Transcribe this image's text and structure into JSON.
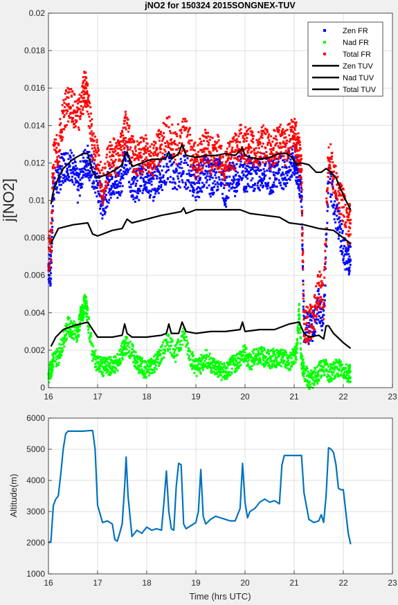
{
  "colors": {
    "zen_fr": "#0000ff",
    "nad_fr": "#00ff00",
    "total_fr": "#ff0000",
    "tuv": "#000000",
    "altitude": "#0072bd",
    "background": "#f0f0f0",
    "axes_bg": "#ffffff",
    "grid": "#dfdfdf"
  },
  "chart_data": [
    {
      "type": "scatter",
      "title": "jNO2 for 150324 2015SONGNEX-TUV",
      "ylabel": "j[NO2]",
      "xlabel": "",
      "xlim": [
        16,
        23
      ],
      "ylim": [
        0,
        0.02
      ],
      "xticks": [
        16,
        17,
        18,
        19,
        20,
        21,
        22,
        23
      ],
      "xtick_labels": [
        "16",
        "17",
        "18",
        "19",
        "20",
        "21",
        "22",
        "23"
      ],
      "yticks": [
        0,
        0.002,
        0.004,
        0.006,
        0.008,
        0.01,
        0.012,
        0.014,
        0.016,
        0.018,
        0.02
      ],
      "ytick_labels": [
        "0",
        "0.002",
        "0.004",
        "0.006",
        "0.008",
        "0.01",
        "0.012",
        "0.014",
        "0.016",
        "0.018",
        "0.02"
      ],
      "grid": true,
      "legend_position": "top-right",
      "series": [
        {
          "name": "Zen FR",
          "kind": "markers",
          "color": "#0000ff",
          "x": [
            16.0,
            16.05,
            16.1,
            16.2,
            16.3,
            16.4,
            16.5,
            16.6,
            16.7,
            16.8,
            16.9,
            17.0,
            17.1,
            17.2,
            17.3,
            17.4,
            17.5,
            17.58,
            17.7,
            17.8,
            17.9,
            18.0,
            18.1,
            18.2,
            18.3,
            18.45,
            18.6,
            18.75,
            18.9,
            19.0,
            19.1,
            19.2,
            19.3,
            19.4,
            19.5,
            19.6,
            19.7,
            19.8,
            19.9,
            20.0,
            20.1,
            20.2,
            20.3,
            20.4,
            20.5,
            20.6,
            20.7,
            20.8,
            20.9,
            21.0,
            21.05,
            21.1,
            21.15,
            21.2,
            21.3,
            21.4,
            21.5,
            21.6,
            21.7,
            21.8,
            21.9,
            22.0,
            22.1,
            22.15
          ],
          "y": [
            0.0065,
            0.0062,
            0.0108,
            0.0112,
            0.0118,
            0.012,
            0.0118,
            0.0106,
            0.0118,
            0.0122,
            0.0114,
            0.0108,
            0.0098,
            0.0106,
            0.0112,
            0.0108,
            0.0114,
            0.0124,
            0.011,
            0.0107,
            0.0112,
            0.0113,
            0.0107,
            0.0112,
            0.0114,
            0.0118,
            0.0112,
            0.0116,
            0.0113,
            0.0108,
            0.0112,
            0.0117,
            0.0111,
            0.0113,
            0.0116,
            0.0104,
            0.0114,
            0.0111,
            0.0118,
            0.0112,
            0.0116,
            0.0113,
            0.0114,
            0.0117,
            0.0112,
            0.0114,
            0.0118,
            0.0113,
            0.0118,
            0.0121,
            0.0116,
            0.0113,
            0.0104,
            0.0033,
            0.0031,
            0.0035,
            0.0045,
            0.0036,
            0.0114,
            0.01,
            0.0088,
            0.0075,
            0.0066,
            0.0075
          ],
          "spread": 0.0009
        },
        {
          "name": "Nad FR",
          "kind": "markers",
          "color": "#00ff00",
          "x": [
            16.0,
            16.05,
            16.1,
            16.2,
            16.3,
            16.4,
            16.5,
            16.6,
            16.65,
            16.7,
            16.75,
            16.8,
            16.9,
            17.0,
            17.1,
            17.2,
            17.3,
            17.4,
            17.5,
            17.58,
            17.7,
            17.8,
            17.9,
            18.0,
            18.1,
            18.2,
            18.3,
            18.45,
            18.6,
            18.75,
            18.9,
            19.0,
            19.1,
            19.2,
            19.3,
            19.4,
            19.5,
            19.6,
            19.7,
            19.8,
            19.9,
            20.0,
            20.1,
            20.2,
            20.3,
            20.4,
            20.5,
            20.6,
            20.7,
            20.8,
            20.9,
            21.0,
            21.05,
            21.1,
            21.15,
            21.2,
            21.3,
            21.4,
            21.5,
            21.6,
            21.7,
            21.8,
            21.9,
            22.0,
            22.1,
            22.15
          ],
          "y": [
            0.0006,
            0.001,
            0.0015,
            0.0017,
            0.0025,
            0.0033,
            0.0031,
            0.0029,
            0.0038,
            0.004,
            0.0047,
            0.0037,
            0.0018,
            0.0013,
            0.0011,
            0.0011,
            0.0012,
            0.0013,
            0.0019,
            0.0023,
            0.0019,
            0.0013,
            0.0011,
            0.0009,
            0.0012,
            0.0014,
            0.0018,
            0.0025,
            0.0018,
            0.0029,
            0.0016,
            0.0011,
            0.0012,
            0.0016,
            0.0013,
            0.0011,
            0.0009,
            0.0008,
            0.0011,
            0.0013,
            0.0016,
            0.0018,
            0.0014,
            0.0016,
            0.0018,
            0.0016,
            0.0015,
            0.0016,
            0.0015,
            0.0016,
            0.0014,
            0.0017,
            0.0019,
            0.0042,
            0.0014,
            0.0009,
            0.0004,
            0.0005,
            0.0008,
            0.0012,
            0.0007,
            0.0009,
            0.0011,
            0.0009,
            0.0008,
            0.0007
          ],
          "spread": 0.0005
        },
        {
          "name": "Total FR",
          "kind": "markers",
          "color": "#ff0000",
          "x": [
            16.0,
            16.05,
            16.1,
            16.2,
            16.3,
            16.4,
            16.5,
            16.6,
            16.7,
            16.75,
            16.8,
            16.9,
            17.0,
            17.1,
            17.2,
            17.3,
            17.4,
            17.5,
            17.58,
            17.7,
            17.8,
            17.9,
            18.0,
            18.1,
            18.2,
            18.3,
            18.45,
            18.6,
            18.75,
            18.9,
            19.0,
            19.1,
            19.2,
            19.3,
            19.4,
            19.5,
            19.6,
            19.7,
            19.8,
            19.9,
            20.0,
            20.1,
            20.2,
            20.3,
            20.4,
            20.5,
            20.6,
            20.7,
            20.8,
            20.9,
            21.0,
            21.05,
            21.1,
            21.15,
            21.2,
            21.3,
            21.4,
            21.5,
            21.6,
            21.7,
            21.8,
            21.9,
            22.0,
            22.1,
            22.15
          ],
          "y": [
            0.0072,
            0.0075,
            0.0122,
            0.0127,
            0.0145,
            0.0152,
            0.0148,
            0.0144,
            0.0155,
            0.0162,
            0.0152,
            0.0132,
            0.0122,
            0.0108,
            0.0118,
            0.0125,
            0.0122,
            0.0131,
            0.014,
            0.0125,
            0.0122,
            0.0124,
            0.0125,
            0.0122,
            0.0126,
            0.013,
            0.0136,
            0.0128,
            0.0138,
            0.0127,
            0.0121,
            0.0124,
            0.013,
            0.0124,
            0.0126,
            0.0124,
            0.0117,
            0.0124,
            0.0126,
            0.0131,
            0.0129,
            0.013,
            0.0125,
            0.0128,
            0.0131,
            0.0126,
            0.0128,
            0.0132,
            0.0127,
            0.0133,
            0.0138,
            0.0131,
            0.0125,
            0.0113,
            0.0035,
            0.0033,
            0.0038,
            0.0054,
            0.0046,
            0.0126,
            0.0113,
            0.0103,
            0.0098,
            0.0085,
            0.0092
          ],
          "spread": 0.001
        },
        {
          "name": "Zen TUV",
          "kind": "line",
          "color": "#000000",
          "x": [
            16.05,
            16.1,
            16.2,
            16.3,
            16.5,
            16.7,
            16.8,
            16.9,
            17.0,
            17.2,
            17.4,
            17.5,
            17.55,
            17.6,
            17.7,
            17.9,
            18.1,
            18.3,
            18.4,
            18.45,
            18.5,
            18.65,
            18.72,
            18.8,
            19.0,
            19.2,
            19.4,
            19.6,
            19.8,
            19.95,
            20.0,
            20.1,
            20.3,
            20.5,
            20.7,
            20.85,
            20.95,
            21.05,
            21.15,
            21.3,
            21.45,
            21.55,
            21.65,
            21.75,
            21.85,
            21.95,
            22.05,
            22.15
          ],
          "y": [
            0.0098,
            0.0105,
            0.0112,
            0.0117,
            0.0122,
            0.0125,
            0.0125,
            0.0115,
            0.0112,
            0.0114,
            0.0117,
            0.0119,
            0.0124,
            0.0126,
            0.0118,
            0.012,
            0.0122,
            0.0122,
            0.0123,
            0.0126,
            0.0122,
            0.0125,
            0.013,
            0.0124,
            0.0123,
            0.0124,
            0.0124,
            0.0125,
            0.0124,
            0.0128,
            0.0124,
            0.0123,
            0.0122,
            0.0123,
            0.0125,
            0.0125,
            0.0123,
            0.0119,
            0.012,
            0.0119,
            0.0115,
            0.0115,
            0.0117,
            0.0115,
            0.0112,
            0.0106,
            0.01,
            0.0095
          ]
        },
        {
          "name": "Nad TUV",
          "kind": "line",
          "color": "#000000",
          "x": [
            16.05,
            16.15,
            16.3,
            16.5,
            16.8,
            17.0,
            17.3,
            17.5,
            17.55,
            17.6,
            17.7,
            18.0,
            18.3,
            18.4,
            18.45,
            18.5,
            18.65,
            18.72,
            18.8,
            19.0,
            19.3,
            19.6,
            19.9,
            19.95,
            20.0,
            20.3,
            20.6,
            20.9,
            21.1,
            21.2,
            21.3,
            21.5,
            21.6,
            21.65,
            21.7,
            21.8,
            22.0,
            22.15
          ],
          "y": [
            0.0022,
            0.0027,
            0.0031,
            0.0033,
            0.0035,
            0.0027,
            0.0027,
            0.0028,
            0.0034,
            0.0029,
            0.0027,
            0.0027,
            0.0028,
            0.0029,
            0.0034,
            0.0029,
            0.0029,
            0.0035,
            0.003,
            0.0029,
            0.003,
            0.003,
            0.0031,
            0.0035,
            0.003,
            0.0031,
            0.0031,
            0.0034,
            0.0035,
            0.0029,
            0.0027,
            0.0028,
            0.0026,
            0.0033,
            0.0033,
            0.0029,
            0.0024,
            0.0021
          ]
        },
        {
          "name": "Total TUV",
          "kind": "line",
          "color": "#000000",
          "x": [
            16.05,
            16.2,
            16.5,
            16.8,
            16.9,
            17.0,
            17.3,
            17.5,
            17.6,
            17.7,
            18.0,
            18.3,
            18.5,
            18.7,
            18.75,
            18.8,
            19.0,
            19.3,
            19.6,
            19.9,
            20.1,
            20.4,
            20.7,
            20.9,
            21.2,
            21.5,
            21.8,
            22.0,
            22.15
          ],
          "y": [
            0.0077,
            0.0085,
            0.0087,
            0.0088,
            0.0082,
            0.0081,
            0.0084,
            0.0085,
            0.009,
            0.0088,
            0.009,
            0.0092,
            0.0093,
            0.0094,
            0.0096,
            0.0093,
            0.0095,
            0.0095,
            0.0095,
            0.0095,
            0.0093,
            0.0092,
            0.0091,
            0.0088,
            0.0087,
            0.0085,
            0.0084,
            0.008,
            0.0077
          ]
        }
      ]
    },
    {
      "type": "line",
      "title": "",
      "xlabel": "Time (hrs UTC)",
      "ylabel": "Altitude(m)",
      "xlim": [
        16,
        23
      ],
      "ylim": [
        1000,
        6000
      ],
      "xticks": [
        16,
        17,
        18,
        19,
        20,
        21,
        22,
        23
      ],
      "xtick_labels": [
        "16",
        "17",
        "18",
        "19",
        "20",
        "21",
        "22",
        "23"
      ],
      "yticks": [
        1000,
        2000,
        3000,
        4000,
        5000,
        6000
      ],
      "ytick_labels": [
        "1000",
        "2000",
        "3000",
        "4000",
        "5000",
        "6000"
      ],
      "grid": true,
      "series": [
        {
          "kind": "line",
          "color": "#0072bd",
          "x": [
            16.0,
            16.05,
            16.1,
            16.15,
            16.2,
            16.25,
            16.3,
            16.35,
            16.4,
            16.5,
            16.7,
            16.85,
            16.9,
            16.95,
            17.0,
            17.1,
            17.2,
            17.3,
            17.35,
            17.4,
            17.45,
            17.5,
            17.55,
            17.58,
            17.62,
            17.7,
            17.8,
            17.9,
            18.0,
            18.1,
            18.2,
            18.3,
            18.35,
            18.4,
            18.45,
            18.5,
            18.55,
            18.6,
            18.65,
            18.7,
            18.75,
            18.8,
            18.9,
            19.0,
            19.05,
            19.1,
            19.15,
            19.2,
            19.3,
            19.4,
            19.5,
            19.6,
            19.7,
            19.8,
            19.9,
            19.95,
            20.0,
            20.05,
            20.1,
            20.2,
            20.3,
            20.4,
            20.5,
            20.6,
            20.7,
            20.75,
            20.8,
            20.9,
            21.0,
            21.05,
            21.15,
            21.2,
            21.3,
            21.4,
            21.5,
            21.55,
            21.6,
            21.65,
            21.7,
            21.75,
            21.8,
            21.85,
            21.9,
            21.95,
            22.0,
            22.1,
            22.15
          ],
          "y": [
            2000,
            2050,
            3200,
            3400,
            3500,
            4200,
            5000,
            5500,
            5580,
            5580,
            5580,
            5600,
            5600,
            5000,
            3200,
            2650,
            2700,
            2600,
            2100,
            2050,
            2300,
            2600,
            3800,
            4750,
            3500,
            2200,
            2400,
            2300,
            2500,
            2400,
            2450,
            2400,
            3300,
            4300,
            3000,
            2450,
            2400,
            3800,
            4550,
            4500,
            2600,
            2450,
            2550,
            2650,
            3000,
            4350,
            2850,
            2600,
            2750,
            2850,
            2800,
            2750,
            2700,
            2700,
            3100,
            4550,
            3300,
            2800,
            3000,
            3100,
            3300,
            3400,
            3300,
            3350,
            3250,
            4500,
            4800,
            4800,
            4800,
            4800,
            4800,
            3600,
            2750,
            2650,
            2700,
            2900,
            2650,
            3500,
            5050,
            5000,
            4900,
            4500,
            3750,
            3700,
            3700,
            2300,
            1950
          ]
        }
      ]
    }
  ]
}
